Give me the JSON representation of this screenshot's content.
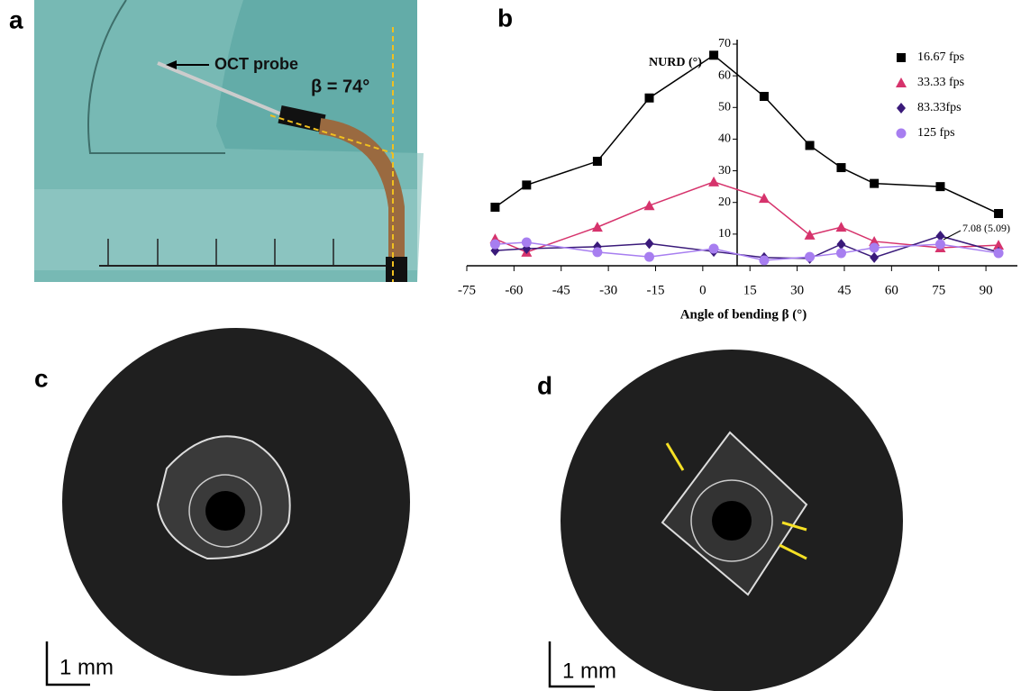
{
  "panel_labels": [
    "a",
    "b",
    "c",
    "d"
  ],
  "photo_annotations": [
    "OCT probe",
    "β = 74°"
  ],
  "scale_bars": [
    "1 mm",
    "1 mm"
  ],
  "chart_data": {
    "type": "line",
    "title": "NURD (°)",
    "x_label": "Angle of bending β (°)",
    "annotation": "7.08 (5.09)",
    "xlim": [
      -75,
      100
    ],
    "xticks": [
      -75,
      -60,
      -45,
      -30,
      -15,
      0,
      15,
      30,
      45,
      60,
      75,
      90
    ],
    "ylim": [
      0,
      70
    ],
    "yticks": [
      10,
      20,
      30,
      40,
      50,
      60,
      70
    ],
    "series": [
      {
        "name": "16.67 fps",
        "color": "#000000",
        "marker": "square",
        "x": [
          -66,
          -56,
          -33.5,
          -17,
          3.5,
          19.5,
          34,
          44,
          54.5,
          75.5,
          94
        ],
        "values": [
          18.5,
          25.5,
          33,
          53,
          66.5,
          53.5,
          38,
          31,
          26,
          25,
          16.5
        ]
      },
      {
        "name": "33.33 fps",
        "color": "#d6336c",
        "marker": "triangle",
        "x": [
          -66,
          -56,
          -33.5,
          -17,
          3.5,
          19.5,
          34,
          44,
          54.5,
          75.5,
          94
        ],
        "values": [
          8.5,
          4.3,
          12.2,
          19,
          26.5,
          21.3,
          9.7,
          12.2,
          7.7,
          5.7,
          6.5
        ]
      },
      {
        "name": "83.33fps",
        "color": "#3a1a7a",
        "marker": "diamond",
        "x": [
          -66,
          -56,
          -33.5,
          -17,
          3.5,
          19.5,
          34,
          44,
          54.5,
          75.5,
          94
        ],
        "values": [
          4.8,
          5.4,
          6,
          7,
          4.5,
          2.6,
          2.3,
          6.8,
          2.6,
          9.4,
          4.3
        ]
      },
      {
        "name": "125 fps",
        "color": "#a77ef0",
        "marker": "circle",
        "x": [
          -66,
          -56,
          -33.5,
          -17,
          3.5,
          19.5,
          34,
          44,
          54.5,
          75.5,
          94
        ],
        "values": [
          6.8,
          7.4,
          4.3,
          2.8,
          5.4,
          1.7,
          2.8,
          4,
          5.7,
          6.8,
          4
        ]
      }
    ]
  }
}
